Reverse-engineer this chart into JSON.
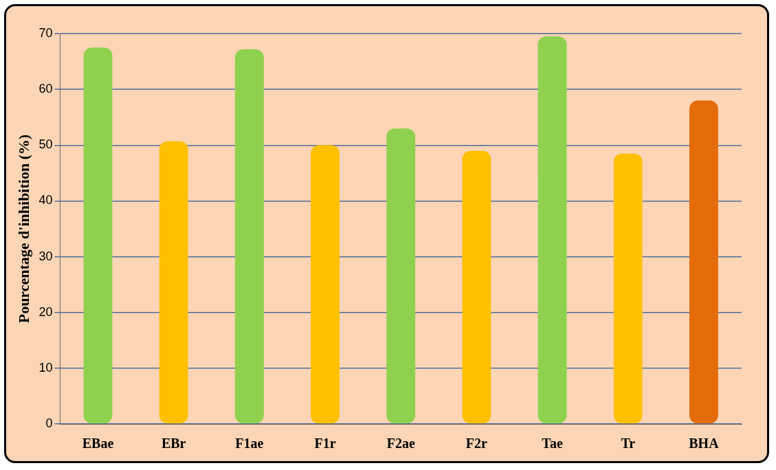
{
  "chart_data": {
    "type": "bar",
    "ylabel": "Pourcentage d'inhibition (%)",
    "categories": [
      "EBae",
      "EBr",
      "F1ae",
      "F1r",
      "F2ae",
      "F2r",
      "Tae",
      "Tr",
      "BHA"
    ],
    "values": [
      67.5,
      50.7,
      67.2,
      50,
      53,
      49,
      69.5,
      48.5,
      58
    ],
    "colors": [
      "#8fd14f",
      "#ffc000",
      "#8fd14f",
      "#ffc000",
      "#8fd14f",
      "#ffc000",
      "#8fd14f",
      "#ffc000",
      "#e46c0a"
    ],
    "ylim": [
      0,
      70
    ],
    "yticks": [
      0,
      10,
      20,
      30,
      40,
      50,
      60,
      70
    ],
    "grid": "y",
    "legend": false
  }
}
